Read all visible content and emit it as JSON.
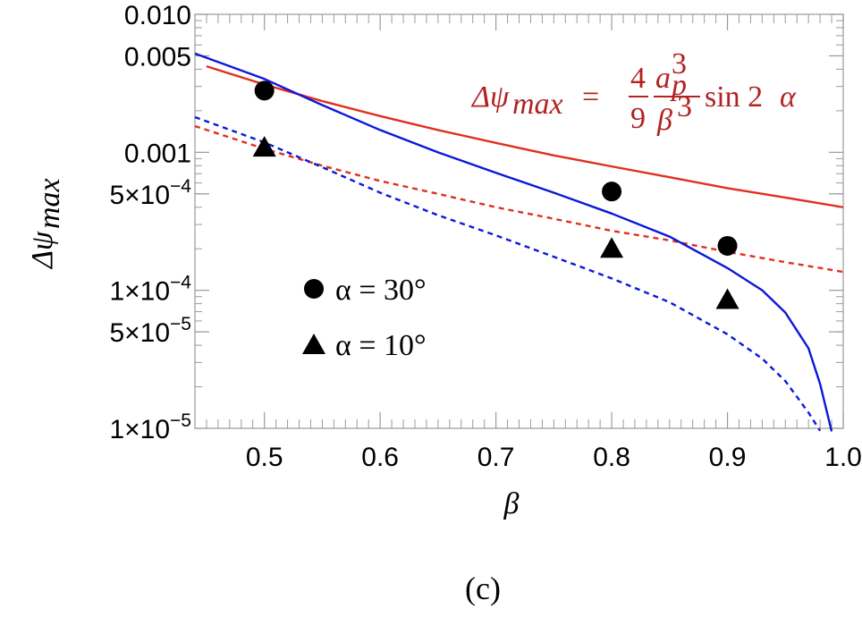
{
  "chart_data": {
    "type": "line",
    "title": "",
    "xlabel": "β",
    "ylabel_base": "Δψ",
    "ylabel_sub": "max",
    "yscale": "log",
    "xlim": [
      0.44,
      1.0
    ],
    "ylim": [
      1e-05,
      0.01
    ],
    "x_ticks": [
      0.5,
      0.6,
      0.7,
      0.8,
      0.9,
      1.0
    ],
    "x_tick_labels": [
      "0.5",
      "0.6",
      "0.7",
      "0.8",
      "0.9",
      "1.0"
    ],
    "y_ticks": [
      {
        "value": 0.01,
        "mantissa": "0.010",
        "exp": ""
      },
      {
        "value": 0.005,
        "mantissa": "0.005",
        "exp": ""
      },
      {
        "value": 0.001,
        "mantissa": "0.001",
        "exp": ""
      },
      {
        "value": 0.0005,
        "mantissa": "5×10",
        "exp": "−4"
      },
      {
        "value": 0.0001,
        "mantissa": "1×10",
        "exp": "−4"
      },
      {
        "value": 5e-05,
        "mantissa": "5×10",
        "exp": "−5"
      },
      {
        "value": 1e-05,
        "mantissa": "1×10",
        "exp": "−5"
      }
    ],
    "series": [
      {
        "name": "red solid (formula, α = 30°)",
        "color": "#e0301e",
        "dash": false,
        "x": [
          0.45,
          0.5,
          0.55,
          0.6,
          0.65,
          0.7,
          0.75,
          0.8,
          0.85,
          0.9,
          0.95,
          1.0
        ],
        "y": [
          0.0042,
          0.0031,
          0.00235,
          0.00183,
          0.00145,
          0.00117,
          0.00095,
          0.00079,
          0.00066,
          0.00055,
          0.00047,
          0.0004
        ]
      },
      {
        "name": "red dashed (formula, α = 10°)",
        "color": "#e0301e",
        "dash": true,
        "x": [
          0.44,
          0.5,
          0.55,
          0.6,
          0.65,
          0.7,
          0.75,
          0.8,
          0.85,
          0.9,
          0.95,
          1.0
        ],
        "y": [
          0.00155,
          0.00106,
          0.0008,
          0.00062,
          0.0005,
          0.0004,
          0.00033,
          0.00027,
          0.00023,
          0.00019,
          0.00016,
          0.000136
        ]
      },
      {
        "name": "blue solid (α = 30°)",
        "color": "#0b18d8",
        "dash": false,
        "x": [
          0.44,
          0.5,
          0.55,
          0.6,
          0.65,
          0.7,
          0.75,
          0.8,
          0.85,
          0.9,
          0.93,
          0.95,
          0.97,
          0.98,
          0.99
        ],
        "y": [
          0.0052,
          0.0034,
          0.0022,
          0.00145,
          0.001,
          0.00071,
          0.00051,
          0.00036,
          0.000245,
          0.000145,
          0.0001,
          6.9e-05,
          3.8e-05,
          2.1e-05,
          9.5e-06
        ]
      },
      {
        "name": "blue dashed (α = 10°)",
        "color": "#0b18d8",
        "dash": true,
        "x": [
          0.44,
          0.5,
          0.55,
          0.6,
          0.65,
          0.7,
          0.75,
          0.8,
          0.85,
          0.9,
          0.93,
          0.95,
          0.97,
          0.98
        ],
        "y": [
          0.0018,
          0.00118,
          0.00078,
          0.00051,
          0.00035,
          0.00025,
          0.000175,
          0.000122,
          8.2e-05,
          4.8e-05,
          3.2e-05,
          2.2e-05,
          1.3e-05,
          9.6e-06
        ]
      }
    ],
    "markers": [
      {
        "label": "α = 30°",
        "shape": "circle",
        "points": [
          [
            0.5,
            0.0028
          ],
          [
            0.8,
            0.00052
          ],
          [
            0.9,
            0.00021
          ]
        ]
      },
      {
        "label": "α = 10°",
        "shape": "triangle",
        "points": [
          [
            0.5,
            0.00108
          ],
          [
            0.8,
            0.0002
          ],
          [
            0.9,
            8.5e-05
          ]
        ]
      }
    ],
    "legend": [
      {
        "shape": "circle",
        "text": "α = 30°"
      },
      {
        "shape": "triangle",
        "text": "α = 10°"
      }
    ],
    "annotation": {
      "lhs": "Δψ",
      "lhs_sub": "max",
      "equals": "=",
      "frac1_num": "4",
      "frac1_den": "9",
      "frac2_num_base": "a",
      "frac2_num_sup": "3",
      "frac2_num_sub": "p",
      "frac2_den": "β",
      "frac2_den_sup": "3",
      "tail": "sin 2",
      "tail_var": "α",
      "color": "#b22222"
    },
    "caption": "(c)"
  }
}
